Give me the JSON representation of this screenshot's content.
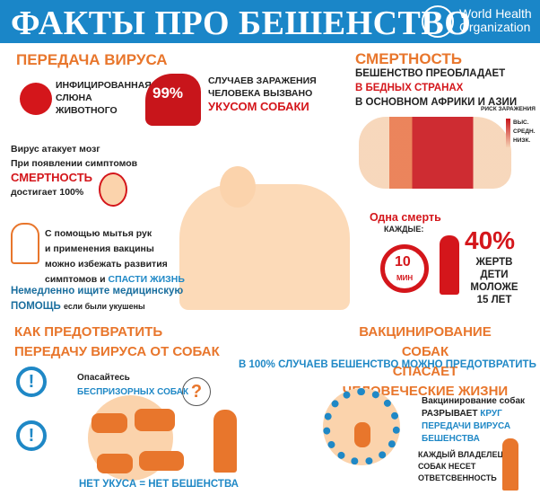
{
  "header": {
    "title": "ФАКТЫ ПРО БЕШЕНСТВО",
    "org_line1": "World Health",
    "org_line2": "Organization"
  },
  "transmission": {
    "heading": "ПЕРЕДАЧА ВИРУСА",
    "saliva": [
      "ИНФИЦИРОВАННАЯ",
      "СЛЮНА",
      "ЖИВОТНОГО"
    ],
    "percent": "99%",
    "dog_text": [
      "СЛУЧАЕВ ЗАРАЖЕНИЯ",
      "ЧЕЛОВЕКА ВЫЗВАНО"
    ],
    "dog_highlight": "УКУСОМ СОБАКИ"
  },
  "brain": {
    "line1": "Вирус атакует мозг",
    "line2": "При появлении симптомов",
    "highlight": "СМЕРТНОСТЬ",
    "line3": "достигает 100%"
  },
  "prevent_info": {
    "lines": [
      "С помощью мытья рук",
      "и применения вакцины",
      "можно избежать развития"
    ],
    "last": "симптомов и ",
    "highlight": "СПАСТИ ЖИЗНЬ",
    "seek": "Немедленно ищите медицинскую",
    "seek2": "ПОМОЩЬ",
    "seek_small": "если были укушены"
  },
  "mortality": {
    "heading": "СМЕРТНОСТЬ",
    "line1": "БЕШЕНСТВО ПРЕОБЛАДАЕТ",
    "highlight": "В БЕДНЫХ СТРАНАХ",
    "line2": "В ОСНОВНОМ АФРИКИ И АЗИИ",
    "legend_title": "РИСК ЗАРАЖЕНИЯ",
    "legend": [
      "ВЫС.",
      "СРЕДН.",
      "НИЗК."
    ],
    "legend_colors": [
      "#c8151b",
      "#e9774a",
      "#f6d3b4"
    ]
  },
  "death": {
    "line1": "Одна смерть",
    "line2": "КАЖДЫЕ:",
    "minutes": "10",
    "unit": "МИН",
    "percent": "40%",
    "children": [
      "ЖЕРТВ ДЕТИ",
      "МОЛОЖЕ",
      "15 ЛЕТ"
    ]
  },
  "how_prevent": {
    "heading1": "КАК ПРЕДОТВРАТИТЬ",
    "heading2": "ПЕРЕДАЧУ ВИРУСА ОТ СОБАК",
    "beware": "Опасайтесь",
    "beware2": "БЕСПРИЗОРНЫХ СОБАК",
    "question": "?",
    "slogan": "НЕТ УКУСА = НЕТ БЕШЕНСТВА"
  },
  "vaccination": {
    "heading1": "ВАКЦИНИРОВАНИЕ СОБАК",
    "heading2": "СПАСАЕТ ЧЕЛОВЕЧЕСКИЕ ЖИЗНИ",
    "subtitle": "В 100% СЛУЧАЕВ БЕШЕНСТВО МОЖНО ПРЕДОТВРАТИТЬ",
    "circle1": "Вакцинирование собак",
    "circle2": "РАЗРЫВАЕТ ",
    "circle_hl1": "КРУГ",
    "circle_hl2": "ПЕРЕДАЧИ ВИРУСА",
    "circle_hl3": "БЕШЕНСТВА",
    "owner": [
      "КАЖДЫЙ ВЛАДЕЛЕЦ",
      "СОБАК НЕСЕТ",
      "ОТВЕТСВЕННОСТЬ"
    ]
  },
  "colors": {
    "header": "#1a86c8",
    "orange": "#e8762c",
    "red": "#d4161b",
    "blue": "#1f88c6",
    "peach": "#fbc99b"
  }
}
